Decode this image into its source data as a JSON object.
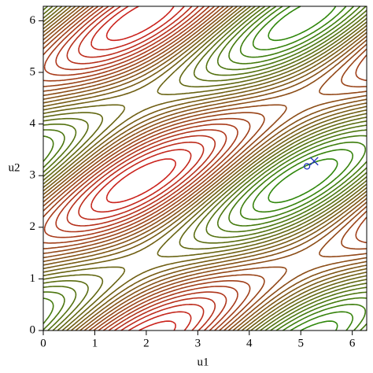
{
  "chart_data": {
    "type": "contour",
    "xlabel": "u1",
    "ylabel": "u2",
    "xlim": [
      0,
      6.28
    ],
    "ylim": [
      0,
      6.28
    ],
    "xticks": [
      0,
      1,
      2,
      3,
      4,
      5,
      6
    ],
    "yticks": [
      0,
      1,
      2,
      3,
      4,
      5,
      6
    ],
    "series": [
      {
        "marker": "circle",
        "color": "#2030c0",
        "x": [
          5.12
        ],
        "values": [
          3.18
        ]
      },
      {
        "marker": "cross",
        "color": "#2030c0",
        "x": [
          5.26
        ],
        "values": [
          3.28
        ]
      }
    ]
  }
}
